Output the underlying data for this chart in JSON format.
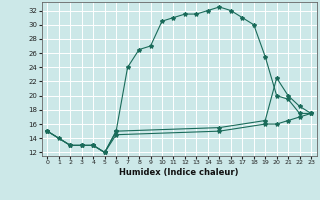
{
  "title": "",
  "xlabel": "Humidex (Indice chaleur)",
  "bg_color": "#cce8e8",
  "grid_color": "#ffffff",
  "line_color": "#1a6b5a",
  "xlim": [
    -0.5,
    23.5
  ],
  "ylim": [
    11.5,
    33.2
  ],
  "xticks": [
    0,
    1,
    2,
    3,
    4,
    5,
    6,
    7,
    8,
    9,
    10,
    11,
    12,
    13,
    14,
    15,
    16,
    17,
    18,
    19,
    20,
    21,
    22,
    23
  ],
  "yticks": [
    12,
    14,
    16,
    18,
    20,
    22,
    24,
    26,
    28,
    30,
    32
  ],
  "line1_x": [
    0,
    1,
    2,
    3,
    4,
    5,
    6,
    7,
    8,
    9,
    10,
    11,
    12,
    13,
    14,
    15,
    16,
    17,
    18,
    19,
    20,
    21,
    22,
    23
  ],
  "line1_y": [
    15,
    14,
    13,
    13,
    13,
    12,
    15,
    24,
    26.5,
    27,
    30.5,
    31,
    31.5,
    31.5,
    32,
    32.5,
    32,
    31,
    30,
    25.5,
    20,
    19.5,
    17.5,
    17.5
  ],
  "line2_x": [
    0,
    2,
    3,
    4,
    5,
    6,
    15,
    19,
    20,
    21,
    22,
    23
  ],
  "line2_y": [
    15,
    13,
    13,
    13,
    12,
    15,
    15.5,
    16.5,
    22.5,
    20,
    18.5,
    17.5
  ],
  "line3_x": [
    0,
    2,
    3,
    4,
    5,
    6,
    15,
    19,
    20,
    21,
    22,
    23
  ],
  "line3_y": [
    15,
    13,
    13,
    13,
    12,
    14.5,
    15,
    16,
    16,
    16.5,
    17,
    17.5
  ]
}
